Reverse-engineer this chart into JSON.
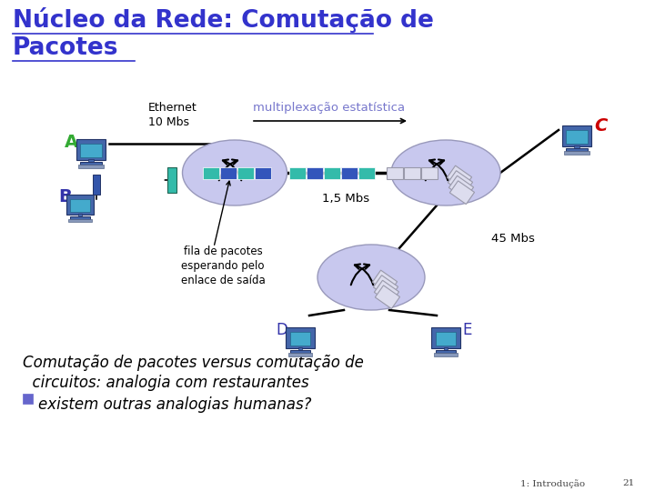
{
  "title_line1": "Núcleo da Rede: Comutação de",
  "title_line2": "Pacotes",
  "title_color": "#3333cc",
  "bg_color": "#ffffff",
  "label_A_color": "#33aa33",
  "label_B_color": "#3333aa",
  "label_C_color": "#cc0000",
  "label_D_color": "#3333aa",
  "label_E_color": "#3333aa",
  "ethernet_label": "Ethernet\n10 Mbs",
  "mux_label": "multiplexação estatística",
  "mux_label_color": "#7777cc",
  "bw_15": "1,5 Mbs",
  "bw_45": "45 Mbs",
  "queue_label": "fila de pacotes\nesperando pelo\nenlace de saída",
  "bottom_text1": "Comutação de pacotes versus comutação de",
  "bottom_text2": "  circuitos: analogia com restaurantes",
  "bottom_text3": "existem outras analogias humanas?",
  "footer_text": "1: Introdução",
  "footer_page": "21",
  "cloud_color": "#c8c8ee",
  "cloud_edge": "#9999bb",
  "pkt_teal": "#33bbaa",
  "pkt_blue": "#3355bb",
  "pkt_gray_fc": "#ddddee",
  "pkt_gray_ec": "#9999aa",
  "link_color": "#000000",
  "bullet_color": "#6666cc"
}
